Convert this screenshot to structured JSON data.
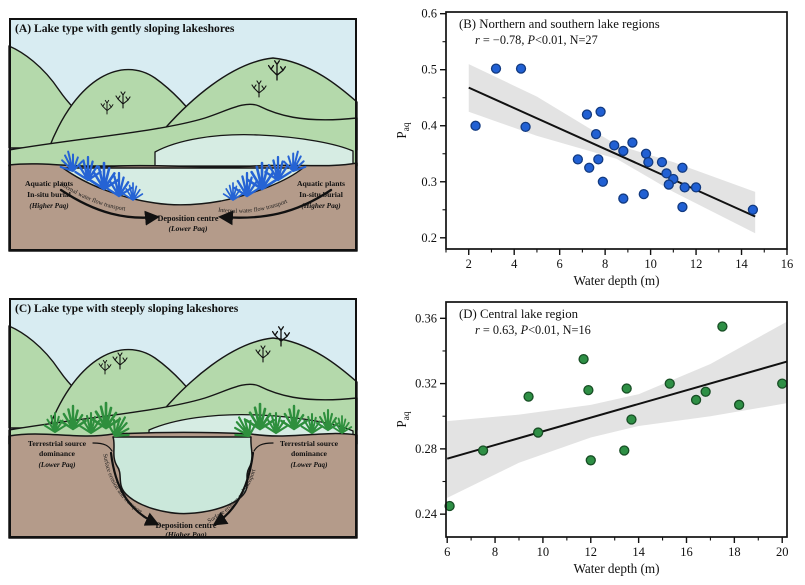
{
  "colors": {
    "sky": "#d8ecf2",
    "mountain": "#b4d9ab",
    "lake": "#d6ece3",
    "ground": "#b49b8a",
    "water_c": "#cbe8db",
    "plant_blue": "#2563d4",
    "grass_green": "#2e8f3d",
    "band_gray": "#e3e3e3"
  },
  "panel_a": {
    "title": "(A) Lake type with gently sloping lakeshores",
    "aquatic_label_left": [
      "Aquatic plants",
      "In-situ burial",
      "(Higher Paq)"
    ],
    "aquatic_label_right": [
      "Aquatic plants",
      "In-situ burial",
      "(Higher Paq)"
    ],
    "flow_left": "Internal water flow transport",
    "flow_right": "Internal water flow transport",
    "centre": [
      "Deposition centre",
      "(Lower Paq)"
    ]
  },
  "panel_c": {
    "title": "(C) Lake type with steeply sloping lakeshores",
    "terrestrial_label_left": [
      "Terrestrial source",
      "dominance",
      "(Lower Paq)"
    ],
    "terrestrial_label_right": [
      "Terrestrial source",
      "dominance",
      "(Lower Paq)"
    ],
    "flow_left": "Surface erosion and transport",
    "flow_right": "Surface erosion and transport",
    "centre": [
      "Deposition centre",
      "(Higher Paq)"
    ]
  },
  "chart_data": [
    {
      "id": "B",
      "type": "scatter",
      "title": "(B) Northern and southern lake regions",
      "stats": {
        "r_sym": "r",
        "seg1": " = −0.78, ",
        "p_sym": "P",
        "seg2": "<0.01, N=27"
      },
      "xlabel": "Water depth (m)",
      "ylabel": "P",
      "ylabel_sub": "aq",
      "xlim": [
        1,
        16
      ],
      "ylim": [
        0.18,
        0.603
      ],
      "xticks": [
        2,
        4,
        6,
        8,
        10,
        12,
        14,
        16
      ],
      "x_minor_step": 1,
      "yticks": [
        0.2,
        0.3,
        0.4,
        0.5,
        0.6
      ],
      "y_minor_step": 0.05,
      "y_decimals": 1,
      "grid": false,
      "marker": {
        "fill": "#2160d3",
        "edge": "#123a80",
        "radius": 4.5
      },
      "regression": {
        "x": [
          2,
          14.6
        ],
        "y": [
          0.468,
          0.238
        ]
      },
      "band": {
        "x": [
          2,
          5,
          8.5,
          11,
          14.6
        ],
        "upper": [
          0.51,
          0.452,
          0.366,
          0.335,
          0.282
        ],
        "lower": [
          0.425,
          0.382,
          0.341,
          0.282,
          0.208
        ]
      },
      "points": [
        [
          3.2,
          0.502
        ],
        [
          4.3,
          0.502
        ],
        [
          2.3,
          0.4
        ],
        [
          4.5,
          0.398
        ],
        [
          7.2,
          0.42
        ],
        [
          7.8,
          0.425
        ],
        [
          7.6,
          0.385
        ],
        [
          8.4,
          0.365
        ],
        [
          8.8,
          0.355
        ],
        [
          9.2,
          0.37
        ],
        [
          9.8,
          0.35
        ],
        [
          9.9,
          0.335
        ],
        [
          6.8,
          0.34
        ],
        [
          7.3,
          0.325
        ],
        [
          7.7,
          0.34
        ],
        [
          7.9,
          0.3
        ],
        [
          8.8,
          0.27
        ],
        [
          9.7,
          0.278
        ],
        [
          10.5,
          0.335
        ],
        [
          10.7,
          0.315
        ],
        [
          11.0,
          0.305
        ],
        [
          11.4,
          0.325
        ],
        [
          11.5,
          0.29
        ],
        [
          12.0,
          0.29
        ],
        [
          11.4,
          0.255
        ],
        [
          10.8,
          0.295
        ],
        [
          14.5,
          0.25
        ]
      ]
    },
    {
      "id": "D",
      "type": "scatter",
      "title": "(D) Central lake region",
      "stats": {
        "r_sym": "r",
        "seg1": " = 0.63, ",
        "p_sym": "P",
        "seg2": "<0.01, N=16"
      },
      "xlabel": "Water depth (m)",
      "ylabel": "P",
      "ylabel_sub": "aq",
      "xlim": [
        5.95,
        20.2
      ],
      "ylim": [
        0.226,
        0.37
      ],
      "xticks": [
        6,
        8,
        10,
        12,
        14,
        16,
        18,
        20
      ],
      "x_minor_step": 1,
      "yticks": [
        0.24,
        0.28,
        0.32,
        0.36
      ],
      "y_minor_step": 0.02,
      "y_decimals": 2,
      "grid": false,
      "marker": {
        "fill": "#2e8f45",
        "edge": "#174d24",
        "radius": 4.5
      },
      "regression": {
        "x": [
          6,
          20.2
        ],
        "y": [
          0.274,
          0.3335
        ]
      },
      "band": {
        "x": [
          6,
          9,
          12,
          14,
          17,
          20.2
        ],
        "upper": [
          0.297,
          0.301,
          0.307,
          0.3135,
          0.332,
          0.358
        ],
        "lower": [
          0.25,
          0.2715,
          0.287,
          0.294,
          0.3,
          0.308
        ]
      },
      "points": [
        [
          6.1,
          0.245
        ],
        [
          7.5,
          0.279
        ],
        [
          9.4,
          0.312
        ],
        [
          9.8,
          0.29
        ],
        [
          11.7,
          0.335
        ],
        [
          11.9,
          0.316
        ],
        [
          12.0,
          0.273
        ],
        [
          13.4,
          0.279
        ],
        [
          13.5,
          0.317
        ],
        [
          13.7,
          0.298
        ],
        [
          15.3,
          0.32
        ],
        [
          16.4,
          0.31
        ],
        [
          16.8,
          0.315
        ],
        [
          17.5,
          0.355
        ],
        [
          18.2,
          0.307
        ],
        [
          20.0,
          0.32
        ]
      ]
    }
  ]
}
